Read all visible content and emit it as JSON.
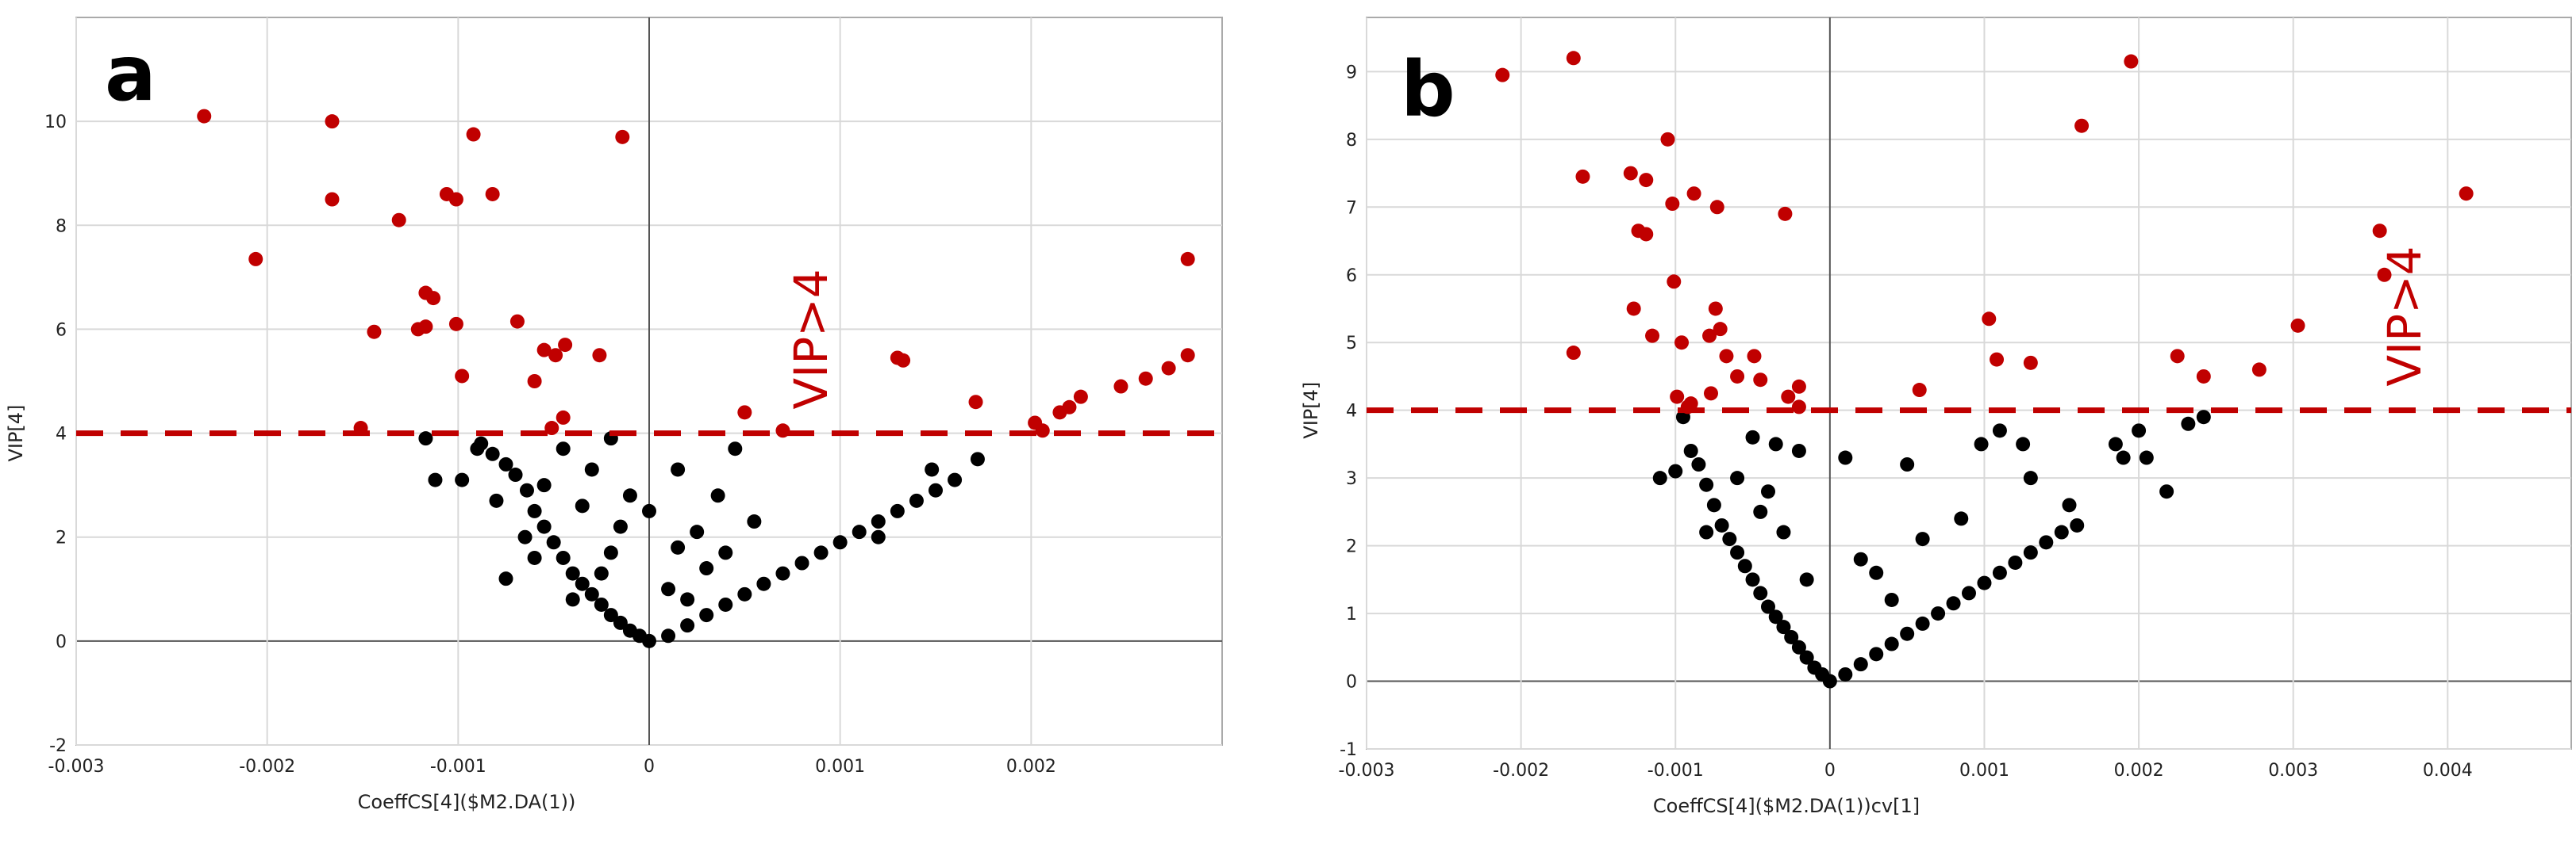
{
  "colors": {
    "above": "#c00000",
    "below": "#000000"
  },
  "chart_data": [
    {
      "type": "scatter",
      "panel_label": "a",
      "xlabel": "CoeffCS[4]($M2.DA(1))",
      "ylabel": "VIP[4]",
      "threshold": 4,
      "threshold_label": "VIP>4",
      "xlim": [
        -0.003,
        0.003
      ],
      "ylim": [
        -2,
        12
      ],
      "xticks": [
        -0.003,
        -0.002,
        -0.001,
        0,
        0.001,
        0.002
      ],
      "xtick_labels": [
        "-0.003",
        "-0.002",
        "-0.001",
        "0",
        "0.001",
        "0.002"
      ],
      "yticks": [
        -2,
        0,
        2,
        4,
        6,
        8,
        10
      ],
      "ytick_labels": [
        "-2",
        "0",
        "2",
        "4",
        "6",
        "8",
        "10"
      ],
      "above_points": [
        [
          -0.00233,
          10.1
        ],
        [
          -0.00206,
          7.35
        ],
        [
          -0.00166,
          10.0
        ],
        [
          -0.00166,
          8.5
        ],
        [
          -0.00131,
          8.1
        ],
        [
          -0.00144,
          5.95
        ],
        [
          -0.00151,
          4.1
        ],
        [
          -0.00117,
          6.7
        ],
        [
          -0.00113,
          6.6
        ],
        [
          -0.00117,
          6.05
        ],
        [
          -0.00121,
          6.0
        ],
        [
          -0.00106,
          8.6
        ],
        [
          -0.00101,
          8.5
        ],
        [
          -0.00092,
          9.75
        ],
        [
          -0.00101,
          6.1
        ],
        [
          -0.00098,
          5.1
        ],
        [
          -0.00082,
          8.6
        ],
        [
          -0.00069,
          6.15
        ],
        [
          -0.0006,
          5.0
        ],
        [
          -0.00055,
          5.6
        ],
        [
          -0.00049,
          5.5
        ],
        [
          -0.00044,
          5.7
        ],
        [
          -0.00026,
          5.5
        ],
        [
          -0.00045,
          4.3
        ],
        [
          -0.00051,
          4.1
        ],
        [
          -0.00014,
          9.7
        ],
        [
          0.0005,
          4.4
        ],
        [
          0.0007,
          4.05
        ],
        [
          0.0013,
          5.45
        ],
        [
          0.00133,
          5.4
        ],
        [
          0.00171,
          4.6
        ],
        [
          0.00202,
          4.2
        ],
        [
          0.00206,
          4.05
        ],
        [
          0.00215,
          4.4
        ],
        [
          0.0022,
          4.5
        ],
        [
          0.00226,
          4.7
        ],
        [
          0.00247,
          4.9
        ],
        [
          0.0026,
          5.05
        ],
        [
          0.00272,
          5.25
        ],
        [
          0.00282,
          5.5
        ],
        [
          0.00282,
          7.35
        ]
      ],
      "below_points": [
        [
          -0.00117,
          3.9
        ],
        [
          -0.00112,
          3.1
        ],
        [
          -0.00098,
          3.1
        ],
        [
          -0.00088,
          3.8
        ],
        [
          -0.00082,
          3.6
        ],
        [
          -0.0008,
          2.7
        ],
        [
          -0.00075,
          3.4
        ],
        [
          -0.0007,
          3.2
        ],
        [
          -0.00064,
          2.9
        ],
        [
          -0.0006,
          2.5
        ],
        [
          -0.00055,
          2.2
        ],
        [
          -0.0005,
          1.9
        ],
        [
          -0.00045,
          1.6
        ],
        [
          -0.0004,
          1.3
        ],
        [
          -0.00035,
          1.1
        ],
        [
          -0.0003,
          0.9
        ],
        [
          -0.00025,
          0.7
        ],
        [
          -0.0002,
          0.5
        ],
        [
          -0.00015,
          0.35
        ],
        [
          -0.0001,
          0.2
        ],
        [
          -5e-05,
          0.1
        ],
        [
          0,
          0.0
        ],
        [
          0.0001,
          0.1
        ],
        [
          0.0002,
          0.3
        ],
        [
          0.0003,
          0.5
        ],
        [
          0.0004,
          0.7
        ],
        [
          0.0005,
          0.9
        ],
        [
          0.0006,
          1.1
        ],
        [
          0.0007,
          1.3
        ],
        [
          0.0008,
          1.5
        ],
        [
          0.0009,
          1.7
        ],
        [
          0.001,
          1.9
        ],
        [
          0.0011,
          2.1
        ],
        [
          0.0012,
          2.3
        ],
        [
          0.0013,
          2.5
        ],
        [
          0.0014,
          2.7
        ],
        [
          0.0015,
          2.9
        ],
        [
          0.0016,
          3.1
        ],
        [
          0.00172,
          3.5
        ],
        [
          0.00148,
          3.3
        ],
        [
          -0.0002,
          3.9
        ],
        [
          -0.00045,
          3.7
        ],
        [
          0.00015,
          3.3
        ],
        [
          0.00036,
          2.8
        ],
        [
          0.00055,
          2.3
        ],
        [
          0.00015,
          1.8
        ],
        [
          -0.0001,
          2.8
        ],
        [
          -0.0006,
          1.6
        ],
        [
          -0.00075,
          1.2
        ],
        [
          -0.0002,
          1.7
        ],
        [
          0.0003,
          1.4
        ],
        [
          -0.00035,
          2.6
        ],
        [
          -0.00025,
          1.3
        ],
        [
          0.0001,
          1.0
        ],
        [
          0.0002,
          0.8
        ],
        [
          0.00045,
          3.7
        ],
        [
          0.0,
          2.5
        ],
        [
          -0.00055,
          3.0
        ],
        [
          -0.0003,
          3.3
        ],
        [
          0.00025,
          2.1
        ],
        [
          -0.00015,
          2.2
        ],
        [
          0.0004,
          1.7
        ],
        [
          -0.0004,
          0.8
        ],
        [
          -0.00065,
          2.0
        ],
        [
          -0.0009,
          3.7
        ],
        [
          0.0012,
          2.0
        ]
      ]
    },
    {
      "type": "scatter",
      "panel_label": "b",
      "xlabel": "CoeffCS[4]($M2.DA(1))cv[1]",
      "ylabel": "VIP[4]",
      "threshold": 4,
      "threshold_label": "VIP>4",
      "xlim": [
        -0.003,
        0.0048
      ],
      "ylim": [
        -1,
        9.8
      ],
      "xticks": [
        -0.003,
        -0.002,
        -0.001,
        0,
        0.001,
        0.002,
        0.003,
        0.004
      ],
      "xtick_labels": [
        "-0.003",
        "-0.002",
        "-0.001",
        "0",
        "0.001",
        "0.002",
        "0.003",
        "0.004"
      ],
      "yticks": [
        -1,
        0,
        1,
        2,
        3,
        4,
        5,
        6,
        7,
        8,
        9
      ],
      "ytick_labels": [
        "-1",
        "0",
        "1",
        "2",
        "3",
        "4",
        "5",
        "6",
        "7",
        "8",
        "9"
      ],
      "above_points": [
        [
          -0.00212,
          8.95
        ],
        [
          -0.00166,
          9.2
        ],
        [
          -0.0016,
          7.45
        ],
        [
          -0.00166,
          4.85
        ],
        [
          -0.00129,
          7.5
        ],
        [
          -0.00127,
          5.5
        ],
        [
          -0.00124,
          6.65
        ],
        [
          -0.00119,
          6.6
        ],
        [
          -0.00119,
          7.4
        ],
        [
          -0.00115,
          5.1
        ],
        [
          -0.00105,
          8.0
        ],
        [
          -0.00102,
          7.05
        ],
        [
          -0.00101,
          5.9
        ],
        [
          -0.00099,
          4.2
        ],
        [
          -0.00096,
          5.0
        ],
        [
          -0.0009,
          4.1
        ],
        [
          -0.00088,
          7.2
        ],
        [
          -0.00078,
          5.1
        ],
        [
          -0.00077,
          4.25
        ],
        [
          -0.00073,
          7.0
        ],
        [
          -0.00074,
          5.5
        ],
        [
          -0.00071,
          5.2
        ],
        [
          -0.00067,
          4.8
        ],
        [
          -0.0006,
          4.5
        ],
        [
          -0.00049,
          4.8
        ],
        [
          -0.00045,
          4.45
        ],
        [
          -0.00029,
          6.9
        ],
        [
          -0.00027,
          4.2
        ],
        [
          -0.0002,
          4.35
        ],
        [
          -0.0002,
          4.05
        ],
        [
          -0.00092,
          4.05
        ],
        [
          0.00058,
          4.3
        ],
        [
          0.00103,
          5.35
        ],
        [
          0.00108,
          4.75
        ],
        [
          0.0013,
          4.7
        ],
        [
          0.00163,
          8.2
        ],
        [
          0.00195,
          9.15
        ],
        [
          0.00225,
          4.8
        ],
        [
          0.00242,
          4.5
        ],
        [
          0.00278,
          4.6
        ],
        [
          0.00303,
          5.25
        ],
        [
          0.00356,
          6.65
        ],
        [
          0.00359,
          6.0
        ],
        [
          0.00412,
          7.2
        ]
      ],
      "below_points": [
        [
          -0.0011,
          3.0
        ],
        [
          -0.001,
          3.1
        ],
        [
          -0.00095,
          3.9
        ],
        [
          -0.0009,
          3.4
        ],
        [
          -0.00085,
          3.2
        ],
        [
          -0.0008,
          2.9
        ],
        [
          -0.00075,
          2.6
        ],
        [
          -0.0007,
          2.3
        ],
        [
          -0.00065,
          2.1
        ],
        [
          -0.0006,
          1.9
        ],
        [
          -0.00055,
          1.7
        ],
        [
          -0.0005,
          1.5
        ],
        [
          -0.00045,
          1.3
        ],
        [
          -0.0004,
          1.1
        ],
        [
          -0.00035,
          0.95
        ],
        [
          -0.0003,
          0.8
        ],
        [
          -0.00025,
          0.65
        ],
        [
          -0.0002,
          0.5
        ],
        [
          -0.00015,
          0.35
        ],
        [
          -0.0001,
          0.2
        ],
        [
          -5e-05,
          0.1
        ],
        [
          0,
          0.0
        ],
        [
          0.0001,
          0.1
        ],
        [
          0.0002,
          0.25
        ],
        [
          0.0003,
          0.4
        ],
        [
          0.0004,
          0.55
        ],
        [
          0.0005,
          0.7
        ],
        [
          0.0006,
          0.85
        ],
        [
          0.0007,
          1.0
        ],
        [
          0.0008,
          1.15
        ],
        [
          0.0009,
          1.3
        ],
        [
          0.001,
          1.45
        ],
        [
          0.0011,
          1.6
        ],
        [
          0.0012,
          1.75
        ],
        [
          0.0013,
          1.9
        ],
        [
          0.0014,
          2.05
        ],
        [
          0.0015,
          2.2
        ],
        [
          0.0016,
          2.3
        ],
        [
          -0.0005,
          3.6
        ],
        [
          -0.00035,
          3.5
        ],
        [
          -0.0002,
          3.4
        ],
        [
          0.0001,
          3.3
        ],
        [
          0.0005,
          3.2
        ],
        [
          0.0011,
          3.7
        ],
        [
          0.00125,
          3.5
        ],
        [
          0.0013,
          3.0
        ],
        [
          0.00098,
          3.5
        ],
        [
          0.00155,
          2.6
        ],
        [
          0.00185,
          3.5
        ],
        [
          0.0019,
          3.3
        ],
        [
          0.002,
          3.7
        ],
        [
          0.00205,
          3.3
        ],
        [
          0.00218,
          2.8
        ],
        [
          0.00232,
          3.8
        ],
        [
          0.00242,
          3.9
        ],
        [
          -0.00045,
          2.5
        ],
        [
          -0.0003,
          2.2
        ],
        [
          0.0002,
          1.8
        ],
        [
          0.0004,
          1.2
        ],
        [
          -0.0006,
          3.0
        ],
        [
          -0.0008,
          2.2
        ],
        [
          -0.00015,
          1.5
        ],
        [
          0.0006,
          2.1
        ],
        [
          0.00085,
          2.4
        ],
        [
          0.0003,
          1.6
        ],
        [
          -0.0004,
          2.8
        ]
      ]
    }
  ]
}
